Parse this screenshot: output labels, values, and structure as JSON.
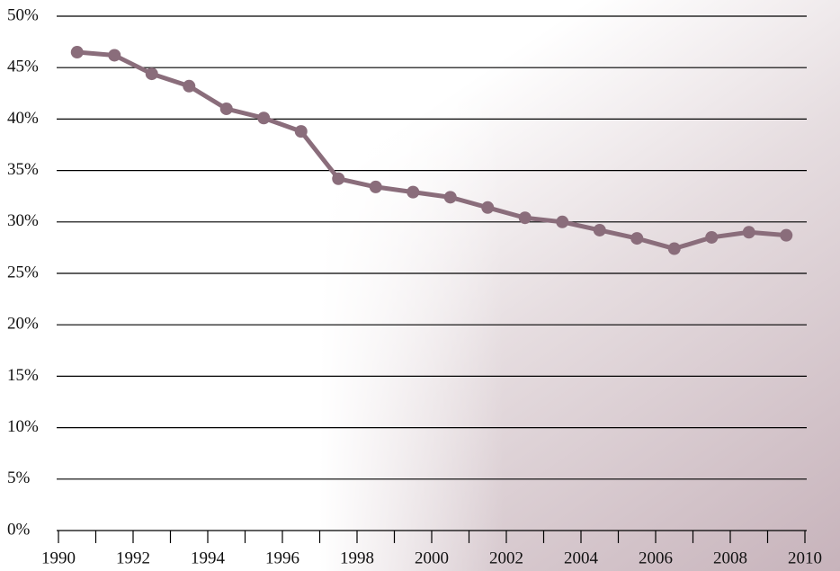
{
  "chart_data": {
    "type": "line",
    "x": [
      1990.5,
      1991.5,
      1992.5,
      1993.5,
      1994.5,
      1995.5,
      1996.5,
      1997.5,
      1998.5,
      1999.5,
      2000.5,
      2001.5,
      2002.5,
      2003.5,
      2004.5,
      2005.5,
      2006.5,
      2007.5,
      2008.5,
      2009.5
    ],
    "series": [
      {
        "color": "#8a6d7b",
        "values": [
          46.5,
          46.2,
          44.4,
          43.2,
          41.0,
          40.1,
          38.8,
          34.2,
          33.4,
          32.9,
          32.4,
          31.4,
          30.4,
          30.0,
          29.2,
          28.4,
          27.4,
          28.5,
          29.0,
          28.7
        ]
      }
    ],
    "xlim": [
      1990,
      2010
    ],
    "xticks": [
      1990,
      1992,
      1994,
      1996,
      1998,
      2000,
      2002,
      2004,
      2006,
      2008,
      2010
    ],
    "x_minor_ticks": [
      1991,
      1993,
      1995,
      1997,
      1999,
      2001,
      2003,
      2005,
      2007,
      2009
    ],
    "ylim": [
      0,
      50
    ],
    "yticks": [
      {
        "value": 0,
        "label": "0%"
      },
      {
        "value": 5,
        "label": "5%"
      },
      {
        "value": 10,
        "label": "10%"
      },
      {
        "value": 15,
        "label": "15%"
      },
      {
        "value": 20,
        "label": "20%"
      },
      {
        "value": 25,
        "label": "25%"
      },
      {
        "value": 30,
        "label": "30%"
      },
      {
        "value": 35,
        "label": "35%"
      },
      {
        "value": 40,
        "label": "40%"
      },
      {
        "value": 45,
        "label": "45%"
      },
      {
        "value": 50,
        "label": "50%"
      }
    ],
    "grid": true
  }
}
